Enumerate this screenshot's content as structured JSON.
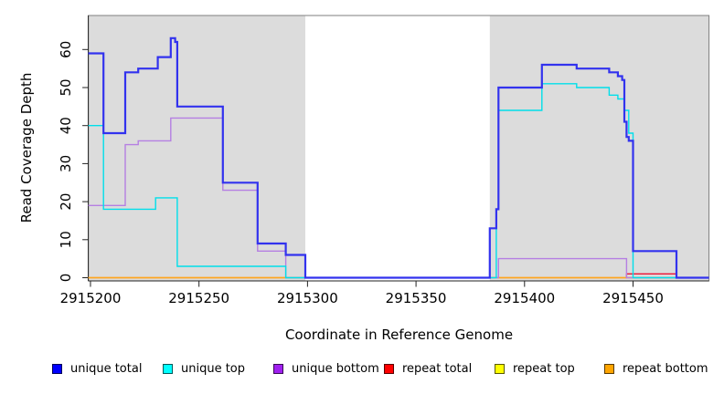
{
  "chart_data": {
    "type": "line",
    "subtype": "step",
    "title": "",
    "xlabel": "Coordinate in Reference Genome",
    "ylabel": "Read Coverage Depth",
    "xlim": [
      2915199,
      2915485
    ],
    "ylim": [
      0,
      69
    ],
    "x_ticks": [
      2915200,
      2915250,
      2915300,
      2915350,
      2915400,
      2915450
    ],
    "y_ticks": [
      0,
      10,
      20,
      30,
      40,
      50,
      60
    ],
    "grid": false,
    "legend_position": "bottom",
    "plot_background": "#FFFFFF",
    "shaded_regions": [
      {
        "name": "left-gray-band",
        "from": 2915199,
        "to": 2915299,
        "color": "#DCDCDC"
      },
      {
        "name": "right-gray-band",
        "from": 2915384,
        "to": 2915485,
        "color": "#DCDCDC"
      }
    ],
    "series": [
      {
        "name": "repeat total",
        "color": "#EE1133",
        "width": 1.3,
        "points": [
          [
            2915199,
            0
          ],
          [
            2915447,
            1
          ],
          [
            2915470,
            0
          ]
        ]
      },
      {
        "name": "repeat top",
        "color": "#FFFF00",
        "width": 1.3,
        "points": [
          [
            2915199,
            0
          ]
        ]
      },
      {
        "name": "repeat bottom",
        "color": "#FFA51E",
        "width": 1.5,
        "points": [
          [
            2915199,
            0
          ]
        ]
      },
      {
        "name": "unique bottom",
        "color": "#B57FE2",
        "width": 1.4,
        "points": [
          [
            2915199,
            19
          ],
          [
            2915216,
            35
          ],
          [
            2915222,
            36
          ],
          [
            2915237,
            42
          ],
          [
            2915261,
            23
          ],
          [
            2915277,
            7
          ],
          [
            2915290,
            0
          ],
          [
            2915388,
            5
          ],
          [
            2915447,
            0
          ]
        ]
      },
      {
        "name": "unique top",
        "color": "#00DFEA",
        "width": 1.4,
        "points": [
          [
            2915199,
            40
          ],
          [
            2915206,
            18
          ],
          [
            2915230,
            21
          ],
          [
            2915240,
            3
          ],
          [
            2915290,
            0
          ],
          [
            2915387,
            18
          ],
          [
            2915388,
            44
          ],
          [
            2915408,
            51
          ],
          [
            2915424,
            50
          ],
          [
            2915439,
            48
          ],
          [
            2915443,
            47
          ],
          [
            2915446,
            44
          ],
          [
            2915448,
            38
          ],
          [
            2915450,
            0
          ]
        ]
      },
      {
        "name": "unique total",
        "color": "#3232EE",
        "width": 2.2,
        "points": [
          [
            2915199,
            59
          ],
          [
            2915206,
            38
          ],
          [
            2915216,
            54
          ],
          [
            2915222,
            55
          ],
          [
            2915231,
            58
          ],
          [
            2915237,
            63
          ],
          [
            2915239,
            62
          ],
          [
            2915240,
            45
          ],
          [
            2915261,
            25
          ],
          [
            2915277,
            9
          ],
          [
            2915290,
            6
          ],
          [
            2915299,
            0
          ],
          [
            2915384,
            13
          ],
          [
            2915387,
            18
          ],
          [
            2915388,
            50
          ],
          [
            2915408,
            56
          ],
          [
            2915424,
            55
          ],
          [
            2915439,
            54
          ],
          [
            2915443,
            53
          ],
          [
            2915445,
            52
          ],
          [
            2915446,
            41
          ],
          [
            2915447,
            37
          ],
          [
            2915448,
            36
          ],
          [
            2915450,
            7
          ],
          [
            2915470,
            0
          ]
        ]
      }
    ],
    "legend": [
      {
        "label": "unique total",
        "color": "#0000FF"
      },
      {
        "label": "unique top",
        "color": "#00FFFF"
      },
      {
        "label": "unique bottom",
        "color": "#A020F0"
      },
      {
        "label": "repeat total",
        "color": "#FF0000"
      },
      {
        "label": "repeat top",
        "color": "#FFFF00"
      },
      {
        "label": "repeat bottom",
        "color": "#FFA500"
      }
    ]
  }
}
